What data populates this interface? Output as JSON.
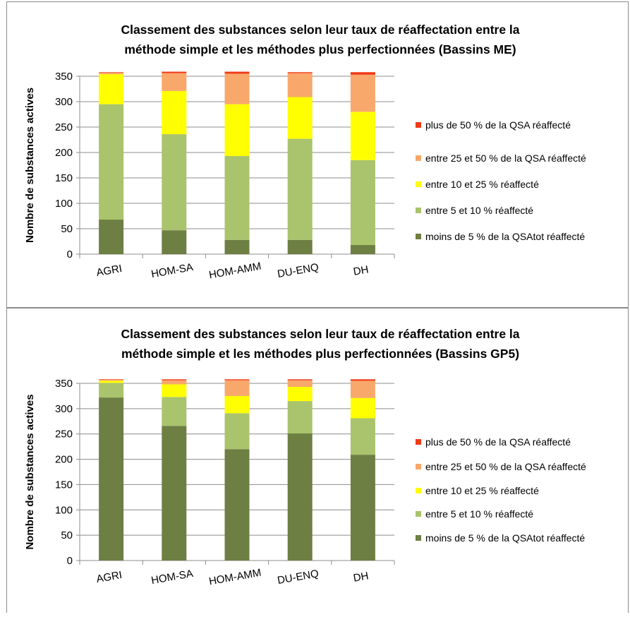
{
  "charts": [
    {
      "title_line1": "Classement des substances selon leur taux de réaffectation entre  la",
      "title_line2": "méthode simple et les méthodes plus perfectionnées (Bassins ME)"
    },
    {
      "title_line1": "Classement des substances selon leur taux de réaffectation entre  la",
      "title_line2": "méthode simple et les méthodes plus perfectionnées (Bassins GP5)"
    }
  ],
  "chart_data": [
    {
      "type": "bar",
      "stacked": true,
      "title": "Classement des substances selon leur taux de réaffectation entre  la méthode simple et les méthodes plus perfectionnées (Bassins ME)",
      "xlabel": "",
      "ylabel": "Nombre de substances actives",
      "ylim": [
        0,
        350
      ],
      "yticks": [
        0,
        50,
        100,
        150,
        200,
        250,
        300,
        350
      ],
      "categories": [
        "AGRI",
        "HOM-SA",
        "HOM-AMM",
        "DU-ENQ",
        "DH"
      ],
      "legend_position": "right",
      "grid": true,
      "series": [
        {
          "name": "moins de 5 % de la QSAtot réaffecté",
          "color": "#6E7F43",
          "values": [
            68,
            47,
            28,
            28,
            18
          ]
        },
        {
          "name": "entre 5 et 10 % réaffecté",
          "color": "#A9C46C",
          "values": [
            227,
            189,
            165,
            199,
            167
          ]
        },
        {
          "name": "entre 10 et 25 % réaffecté",
          "color": "#FFFF00",
          "values": [
            59,
            85,
            102,
            82,
            95
          ]
        },
        {
          "name": "entre 25 et 50 % de la QSA réaffecté",
          "color": "#F9A86B",
          "values": [
            3,
            35,
            60,
            47,
            73
          ]
        },
        {
          "name": "plus de 50 % de la QSA réaffecté",
          "color": "#F03A17",
          "values": [
            1,
            3,
            4,
            2,
            5
          ]
        }
      ]
    },
    {
      "type": "bar",
      "stacked": true,
      "title": "Classement des substances selon leur taux de réaffectation entre  la méthode simple et les méthodes plus perfectionnées (Bassins GP5)",
      "xlabel": "",
      "ylabel": "Nombre de substances actives",
      "ylim": [
        0,
        350
      ],
      "yticks": [
        0,
        50,
        100,
        150,
        200,
        250,
        300,
        350
      ],
      "categories": [
        "AGRI",
        "HOM-SA",
        "HOM-AMM",
        "DU-ENQ",
        "DH"
      ],
      "legend_position": "right",
      "grid": true,
      "series": [
        {
          "name": "moins de 5 % de la QSAtot réaffecté",
          "color": "#6E7F43",
          "values": [
            322,
            266,
            220,
            251,
            209
          ]
        },
        {
          "name": "entre 5 et 10 % réaffecté",
          "color": "#A9C46C",
          "values": [
            29,
            57,
            71,
            64,
            72
          ]
        },
        {
          "name": "entre 10 et 25 % réaffecté",
          "color": "#FFFF00",
          "values": [
            4,
            25,
            34,
            28,
            40
          ]
        },
        {
          "name": "entre 25 et 50 % de la QSA réaffecté",
          "color": "#F9A86B",
          "values": [
            2,
            8,
            31,
            13,
            34
          ]
        },
        {
          "name": "plus de 50 % de la QSA réaffecté",
          "color": "#F03A17",
          "values": [
            1,
            2,
            2,
            2,
            3
          ]
        }
      ]
    }
  ]
}
